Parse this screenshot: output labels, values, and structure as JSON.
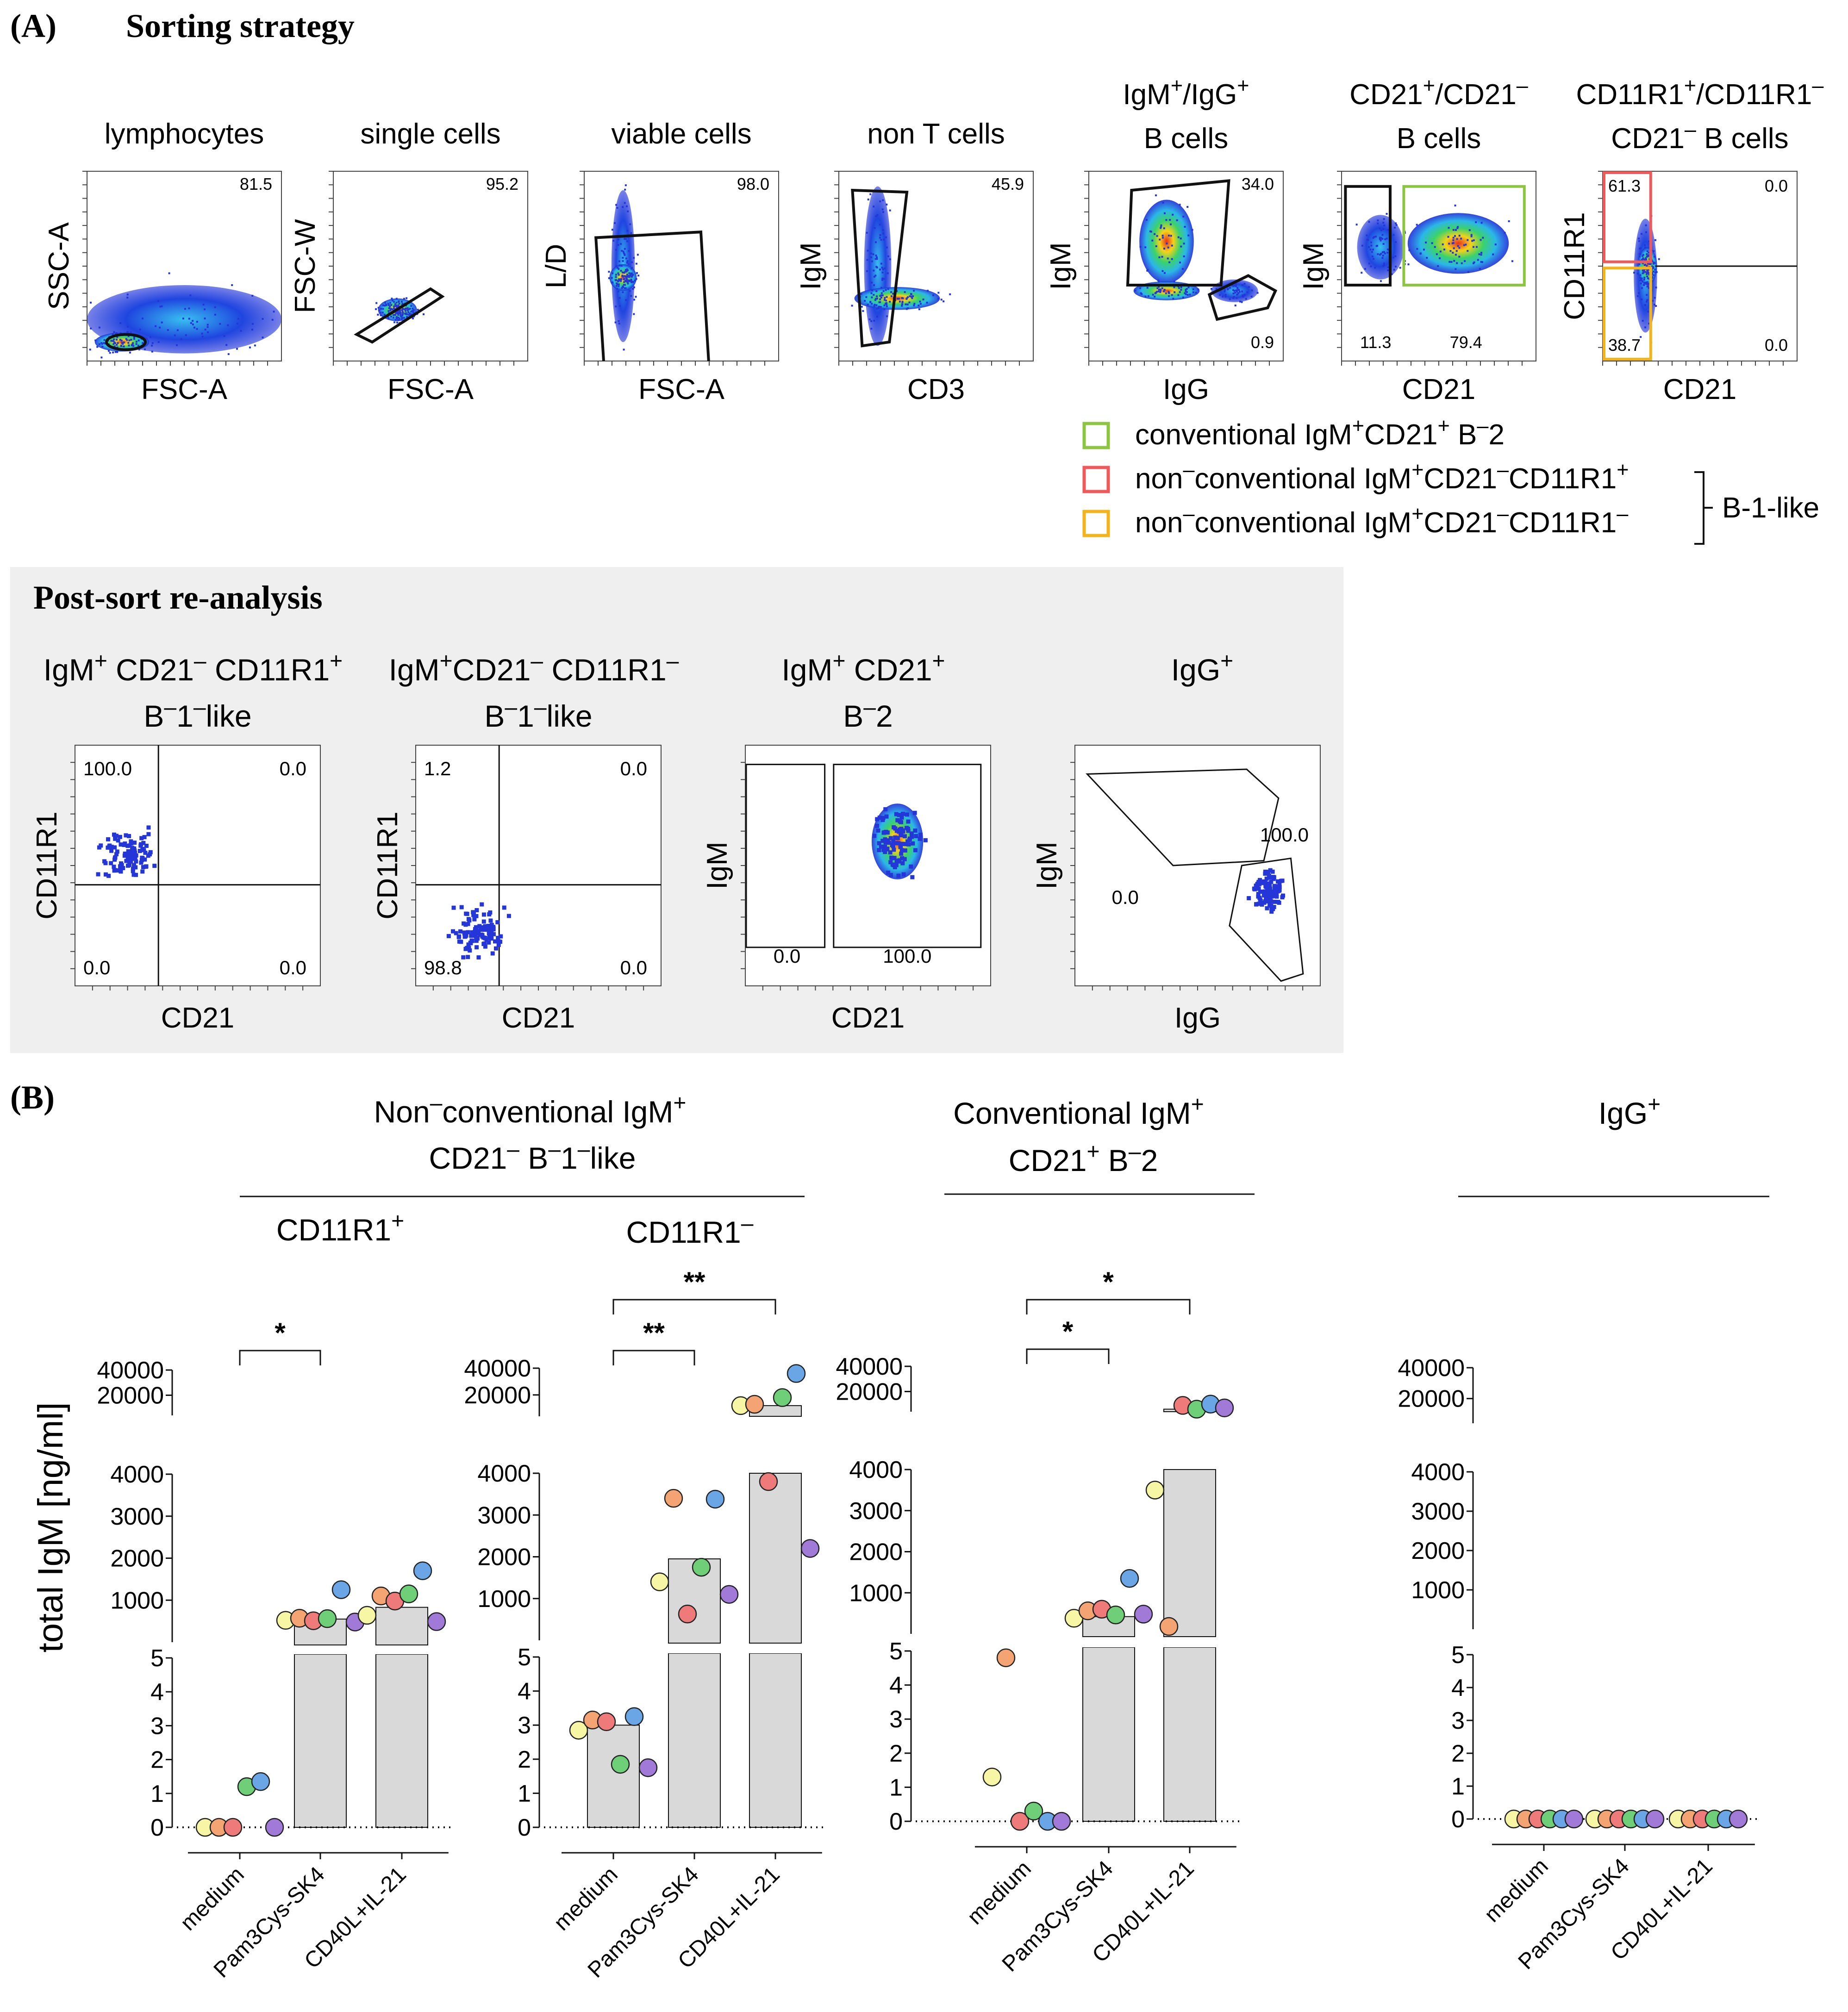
{
  "panelA": {
    "label": "(A)",
    "title": "Sorting strategy",
    "gating": [
      {
        "title": [
          "lymphocytes"
        ],
        "x_axis": "FSC-A",
        "y_axis": "SSC-A",
        "gate_values": [
          "81.5"
        ]
      },
      {
        "title": [
          "single cells"
        ],
        "x_axis": "FSC-A",
        "y_axis": "FSC-W",
        "gate_values": [
          "95.2"
        ]
      },
      {
        "title": [
          "viable cells"
        ],
        "x_axis": "FSC-A",
        "y_axis": "L/D",
        "gate_values": [
          "98.0"
        ]
      },
      {
        "title": [
          "non T cells"
        ],
        "x_axis": "CD3",
        "y_axis": "IgM",
        "gate_values": [
          "45.9"
        ]
      },
      {
        "title": [
          "IgM+/IgG+",
          "B cells"
        ],
        "x_axis": "IgG",
        "y_axis": "IgM",
        "gate_values": [
          "34.0",
          "0.9"
        ]
      },
      {
        "title": [
          "CD21+/CD21-",
          "B cells"
        ],
        "x_axis": "CD21",
        "y_axis": "IgM",
        "gate_values": [
          "11.3",
          "79.4"
        ]
      },
      {
        "title": [
          "CD11R1+/CD11R1-",
          "CD21- B cells"
        ],
        "x_axis": "CD21",
        "y_axis": "CD11R1",
        "gate_values": [
          "61.3",
          "0.0",
          "38.7",
          "0.0"
        ]
      }
    ],
    "legend": [
      {
        "label": "conventional IgM+CD21+ B-2",
        "color": "#8cc641"
      },
      {
        "label": "non-conventional IgM+CD21-CD11R1+",
        "color": "#ee5a5a"
      },
      {
        "label": "non-conventional IgM+CD21-CD11R1-",
        "color": "#f3b31b"
      }
    ],
    "legend_group": "B-1-like",
    "postsort": {
      "title": "Post-sort re-analysis",
      "plots": [
        {
          "title": [
            "IgM+ CD21- CD11R1+",
            "B-1-like"
          ],
          "x_axis": "CD21",
          "y_axis": "CD11R1",
          "values": [
            "100.0",
            "0.0",
            "0.0",
            "0.0"
          ]
        },
        {
          "title": [
            "IgM+CD21- CD11R1-",
            "B-1-like"
          ],
          "x_axis": "CD21",
          "y_axis": "CD11R1",
          "values": [
            "1.2",
            "0.0",
            "98.8",
            "0.0"
          ]
        },
        {
          "title": [
            "IgM+ CD21+",
            "B-2"
          ],
          "x_axis": "CD21",
          "y_axis": "IgM",
          "values": [
            "0.0",
            "100.0"
          ]
        },
        {
          "title": [
            "IgG+"
          ],
          "x_axis": "IgG",
          "y_axis": "IgM",
          "values": [
            "100.0",
            "0.0"
          ]
        }
      ]
    }
  },
  "panelB": {
    "label": "(B)",
    "groups": [
      {
        "title": [
          "Non-conventional IgM+",
          "CD21- B-1-like"
        ]
      },
      {
        "title": [
          "Conventional IgM+",
          "CD21+ B-2"
        ]
      },
      {
        "title": [
          "IgG+"
        ]
      }
    ],
    "subtitles": [
      "CD11R1+",
      "CD11R1-"
    ],
    "y_label": "total IgM [ng/ml]"
  },
  "chart_data": {
    "type": "bar",
    "y_label": "total IgM [ng/ml]",
    "y_axis_breaks": {
      "segment_low": {
        "range": [
          0,
          5
        ],
        "ticks": [
          "0",
          "1",
          "2",
          "3",
          "4",
          "5"
        ]
      },
      "segment_mid": {
        "range": [
          0,
          4000
        ],
        "ticks": [
          "1000",
          "2000",
          "3000",
          "4000"
        ]
      },
      "segment_high": {
        "range": [
          4000,
          40000
        ],
        "ticks": [
          "20000",
          "40000"
        ]
      }
    },
    "categories": [
      "medium",
      "Pam3Cys-SK4",
      "CD40L+IL-21"
    ],
    "donor_colors": [
      "#f6f6a4",
      "#f3a472",
      "#ee7a7a",
      "#6fcf78",
      "#6aa6e6",
      "#a07ad6"
    ],
    "panels": [
      {
        "name": "CD11R1+",
        "bars": [
          0,
          550,
          830
        ],
        "points": [
          [
            0,
            0,
            0,
            1.2,
            1.35,
            0
          ],
          [
            520,
            570,
            510,
            560,
            1250,
            480
          ],
          [
            640,
            1100,
            980,
            1150,
            1700,
            490
          ]
        ],
        "points_zero_low": [
          [
            0,
            0,
            0,
            0,
            0,
            0
          ],
          [
            0,
            0,
            0,
            0,
            0,
            0
          ],
          [
            0,
            0,
            0,
            0,
            0,
            0
          ]
        ],
        "significance": [
          {
            "from": 0,
            "to": 1,
            "label": "*"
          }
        ]
      },
      {
        "name": "CD11R1-",
        "bars": [
          3.0,
          1950,
          12000
        ],
        "points": [
          [
            2.85,
            3.15,
            3.1,
            1.85,
            3.25,
            1.75
          ],
          [
            1400,
            3400,
            630,
            1750,
            3380,
            1100
          ],
          [
            12000,
            13000,
            3800,
            18000,
            36000,
            2200
          ]
        ],
        "significance": [
          {
            "from": 0,
            "to": 1,
            "label": "**"
          },
          {
            "from": 0,
            "to": 2,
            "label": "**"
          }
        ]
      },
      {
        "name": "Conventional IgM+ CD21+ B-2",
        "bars": [
          0,
          420,
          6000
        ],
        "points": [
          [
            1.3,
            4.8,
            0,
            0.3,
            0,
            0
          ],
          [
            380,
            560,
            600,
            460,
            1350,
            480
          ],
          [
            3500,
            180,
            9000,
            6000,
            10000,
            7000
          ]
        ],
        "significance": [
          {
            "from": 0,
            "to": 1,
            "label": "*"
          },
          {
            "from": 0,
            "to": 2,
            "label": "*"
          }
        ]
      },
      {
        "name": "IgG+",
        "bars": [
          0,
          0,
          0
        ],
        "points": [
          [
            0,
            0,
            0,
            0,
            0,
            0
          ],
          [
            0,
            0,
            0,
            0,
            0,
            0
          ],
          [
            0,
            0,
            0,
            0,
            0,
            0
          ]
        ],
        "significance": []
      }
    ]
  }
}
